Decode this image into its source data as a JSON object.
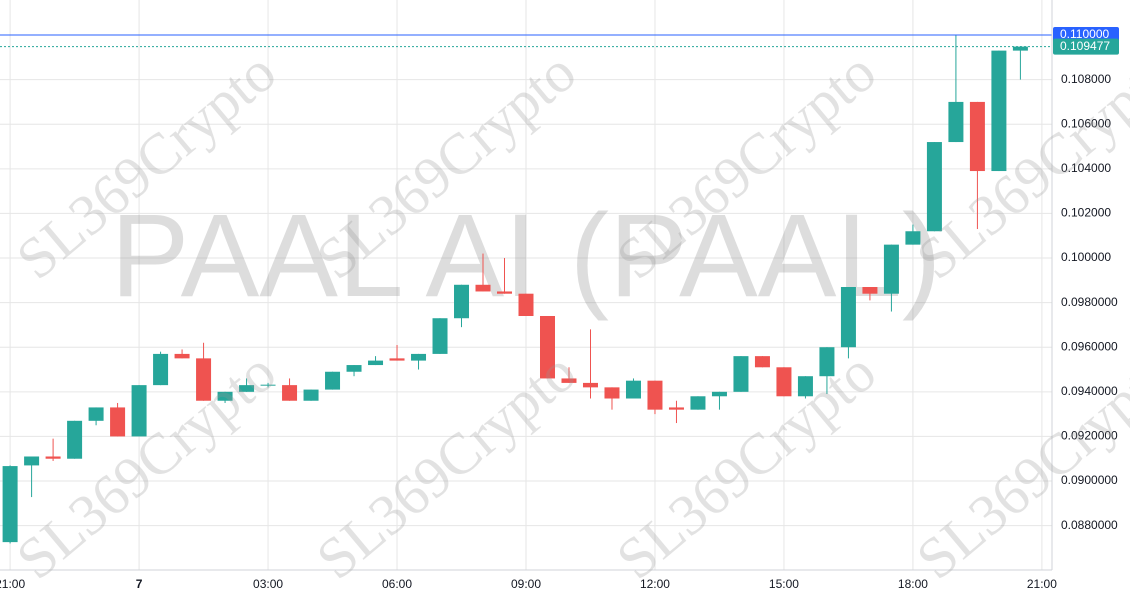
{
  "chart_data": {
    "type": "candlestick",
    "watermark": "PAAL AI (PAAL)",
    "overlay_text": "SL369Crypto",
    "up_color": "#26a69a",
    "down_color": "#ef5350",
    "open": [
      0.08726,
      0.0907,
      0.0911,
      0.091,
      0.0927,
      0.0933,
      0.092,
      0.0943,
      0.0957,
      0.0955,
      0.0936,
      0.094,
      0.0943,
      0.0943,
      0.0936,
      0.0941,
      0.0949,
      0.0952,
      0.0955,
      0.0954,
      0.0957,
      0.0973,
      0.0988,
      0.0985,
      0.0984,
      0.0974,
      0.0946,
      0.0944,
      0.0942,
      0.0937,
      0.0945,
      0.0933,
      0.0932,
      0.0938,
      0.094,
      0.0956,
      0.0951,
      0.0938,
      0.0947,
      0.096,
      0.0987,
      0.0984,
      0.1006,
      0.1012,
      0.1052,
      0.107,
      0.1039,
      0.1093
    ],
    "high": [
      0.0907,
      0.0911,
      0.0919,
      0.0927,
      0.0933,
      0.0935,
      0.0943,
      0.0958,
      0.0959,
      0.0962,
      0.094,
      0.0946,
      0.0944,
      0.0946,
      0.0941,
      0.0949,
      0.0952,
      0.0956,
      0.0961,
      0.0957,
      0.0973,
      0.0988,
      0.1002,
      0.1,
      0.0984,
      0.0974,
      0.0951,
      0.0968,
      0.0942,
      0.0946,
      0.0945,
      0.0936,
      0.0938,
      0.094,
      0.0956,
      0.0956,
      0.0951,
      0.0947,
      0.096,
      0.0987,
      0.0987,
      0.1006,
      0.1015,
      0.1052,
      0.11,
      0.107,
      0.1093,
      0.1095
    ],
    "low": [
      0.0872,
      0.08928,
      0.0909,
      0.091,
      0.0925,
      0.092,
      0.092,
      0.0943,
      0.0955,
      0.0936,
      0.0935,
      0.094,
      0.0942,
      0.0936,
      0.0936,
      0.0941,
      0.0947,
      0.0952,
      0.0954,
      0.095,
      0.0957,
      0.0969,
      0.0985,
      0.0984,
      0.0974,
      0.0946,
      0.0944,
      0.0937,
      0.0932,
      0.0937,
      0.093,
      0.0926,
      0.0932,
      0.0932,
      0.094,
      0.0951,
      0.0938,
      0.0937,
      0.0939,
      0.0955,
      0.0981,
      0.0976,
      0.1006,
      0.1012,
      0.1052,
      0.1013,
      0.1039,
      0.108
    ],
    "close": [
      0.09067,
      0.0911,
      0.091,
      0.0927,
      0.0933,
      0.092,
      0.0943,
      0.0957,
      0.0955,
      0.0936,
      0.094,
      0.0943,
      0.09432,
      0.0936,
      0.0941,
      0.0949,
      0.0952,
      0.0954,
      0.0954,
      0.0957,
      0.0973,
      0.0988,
      0.0985,
      0.0984,
      0.0974,
      0.0946,
      0.0944,
      0.0942,
      0.0937,
      0.0945,
      0.0932,
      0.0932,
      0.0938,
      0.094,
      0.0956,
      0.0951,
      0.0938,
      0.0947,
      0.096,
      0.0987,
      0.0984,
      0.1006,
      0.1012,
      0.1052,
      0.107,
      0.1039,
      0.1093,
      0.10948
    ],
    "xlim": [
      -0.47,
      48.47
    ],
    "xticks": [
      {
        "value": 0,
        "label": "21:00"
      },
      {
        "value": 6,
        "label": "7"
      },
      {
        "value": 12,
        "label": "03:00"
      },
      {
        "value": 18,
        "label": "06:00"
      },
      {
        "value": 24,
        "label": "09:00"
      },
      {
        "value": 30,
        "label": "12:00"
      },
      {
        "value": 36,
        "label": "15:00"
      },
      {
        "value": 42,
        "label": "18:00"
      },
      {
        "value": 48,
        "label": "21:00"
      }
    ],
    "ylim": [
      0.08601,
      0.11157
    ],
    "yticks": [
      {
        "value": 0.088,
        "label": "0.0880000"
      },
      {
        "value": 0.09,
        "label": "0.0900000"
      },
      {
        "value": 0.092,
        "label": "0.0920000"
      },
      {
        "value": 0.094,
        "label": "0.0940000"
      },
      {
        "value": 0.096,
        "label": "0.0960000"
      },
      {
        "value": 0.098,
        "label": "0.0980000"
      },
      {
        "value": 0.1,
        "label": "0.100000"
      },
      {
        "value": 0.102,
        "label": "0.102000"
      },
      {
        "value": 0.104,
        "label": "0.104000"
      },
      {
        "value": 0.106,
        "label": "0.106000"
      },
      {
        "value": 0.108,
        "label": "0.108000"
      }
    ],
    "price_lines": [
      {
        "value": 0.11,
        "label": "0.110000",
        "color": "#2962ff",
        "style": "solid"
      },
      {
        "value": 0.109477,
        "color": "#26a69a",
        "style": "dotted"
      }
    ],
    "grid": true
  }
}
